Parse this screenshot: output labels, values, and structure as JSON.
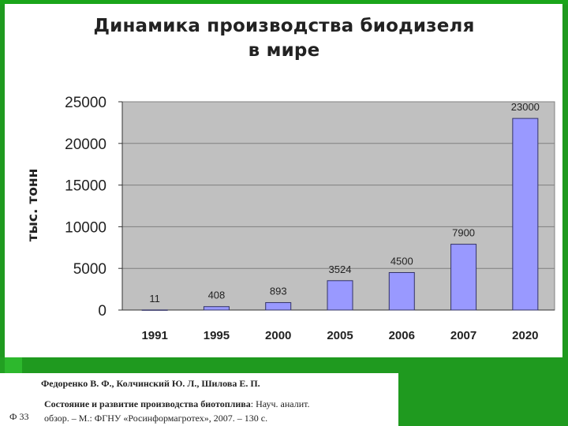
{
  "chart_data": {
    "type": "bar",
    "title_line1": "Динамика производства биодизеля",
    "title_line2": "в мире",
    "ylabel": "тыс. тонн",
    "xlabel": "",
    "categories": [
      "1991",
      "1995",
      "2000",
      "2005",
      "2006",
      "2007",
      "2020"
    ],
    "values": [
      11,
      408,
      893,
      3524,
      4500,
      7900,
      23000
    ],
    "data_labels": [
      "11",
      "408",
      "893",
      "3524",
      "4500",
      "7900",
      "23000"
    ],
    "y_ticks": [
      "0",
      "5000",
      "10000",
      "15000",
      "20000",
      "25000"
    ],
    "ylim": [
      0,
      25000
    ],
    "grid": true,
    "legend": "none",
    "colors": {
      "bar_fill": "#9999ff",
      "bar_stroke": "#333366",
      "plot_bg": "#c0c0c0",
      "gridline": "#7f7f7f"
    }
  },
  "citation": {
    "authors": "Федоренко В. Ф., Колчинский Ю. Л., Шилова Е. П.",
    "title_bold": "Состояние и развитие производства биотоплива",
    "title_rest": ": Науч. аналит.",
    "publication": "обзор. – М.: ФГНУ «Росинформагротех», 2007. – 130 с.",
    "slide_ref": "Ф 33"
  }
}
